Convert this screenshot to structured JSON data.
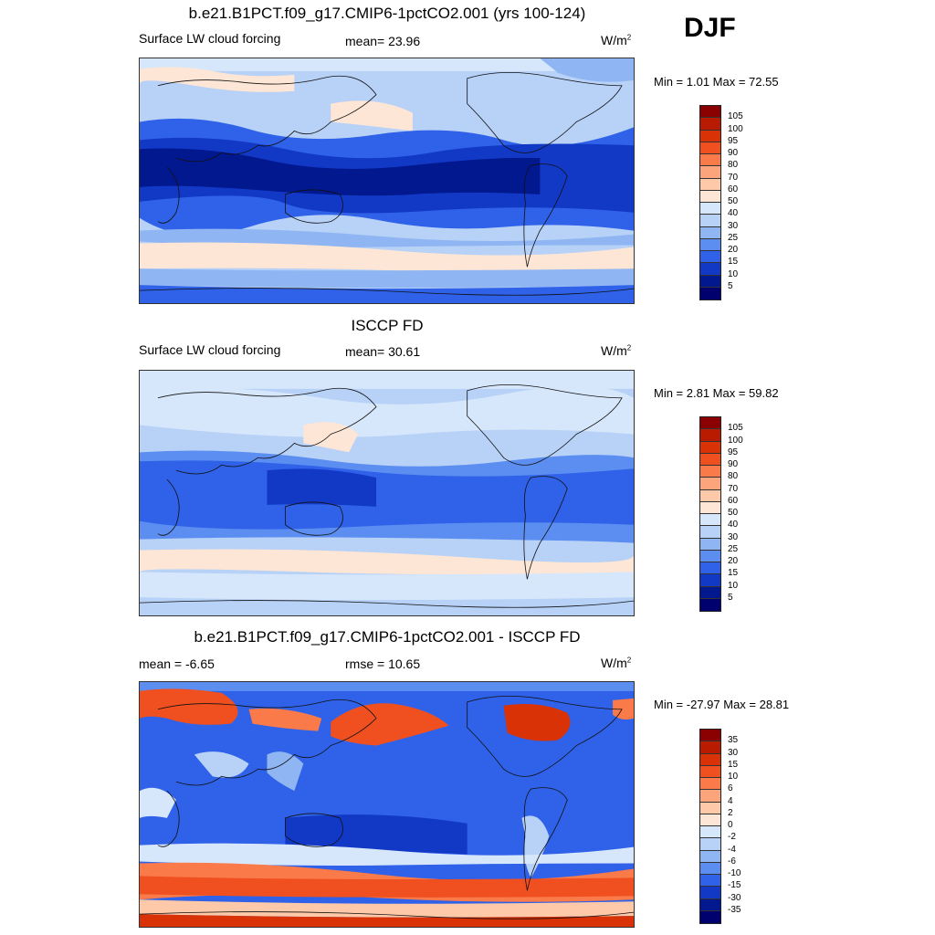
{
  "season": "DJF",
  "units_html": "W/m",
  "units_sup": "2",
  "panel1": {
    "title": "b.e21.B1PCT.f09_g17.CMIP6-1pctCO2.001 (yrs 100-124)",
    "left_label": "Surface LW cloud forcing",
    "mean_label": "mean=  23.96",
    "minmax": "Min =   1.01 Max =  72.55"
  },
  "panel2": {
    "title": "ISCCP FD",
    "left_label": "Surface LW cloud forcing",
    "mean_label": "mean=  30.61",
    "minmax": "Min =   2.81 Max =  59.82"
  },
  "panel3": {
    "title": "b.e21.B1PCT.f09_g17.CMIP6-1pctCO2.001 - ISCCP FD",
    "left_label": "mean =  -6.65",
    "mean_label": "rmse =  10.65",
    "minmax": "Min = -27.97 Max =  28.81"
  },
  "colorbar_abs": {
    "labels": [
      "105",
      "100",
      "95",
      "90",
      "80",
      "70",
      "60",
      "50",
      "40",
      "30",
      "25",
      "20",
      "15",
      "10",
      "5"
    ],
    "colors": [
      "#8b0000",
      "#b81b00",
      "#d83206",
      "#f05020",
      "#fa7a4a",
      "#fca47c",
      "#fdc9a8",
      "#fde6d6",
      "#d7e7fb",
      "#b7d1f7",
      "#8fb5f2",
      "#5b8ef0",
      "#2f62e8",
      "#1238c6",
      "#02188e",
      "#00006e"
    ]
  },
  "colorbar_diff": {
    "labels": [
      "35",
      "30",
      "15",
      "10",
      "6",
      "4",
      "2",
      "0",
      "-2",
      "-4",
      "-6",
      "-10",
      "-15",
      "-30",
      "-35"
    ],
    "colors": [
      "#8b0000",
      "#b81b00",
      "#d83206",
      "#f05020",
      "#fa7a4a",
      "#fca47c",
      "#fdc9a8",
      "#fde6d6",
      "#d7e7fb",
      "#b7d1f7",
      "#8fb5f2",
      "#5b8ef0",
      "#2f62e8",
      "#1238c6",
      "#02188e",
      "#00006e"
    ]
  }
}
